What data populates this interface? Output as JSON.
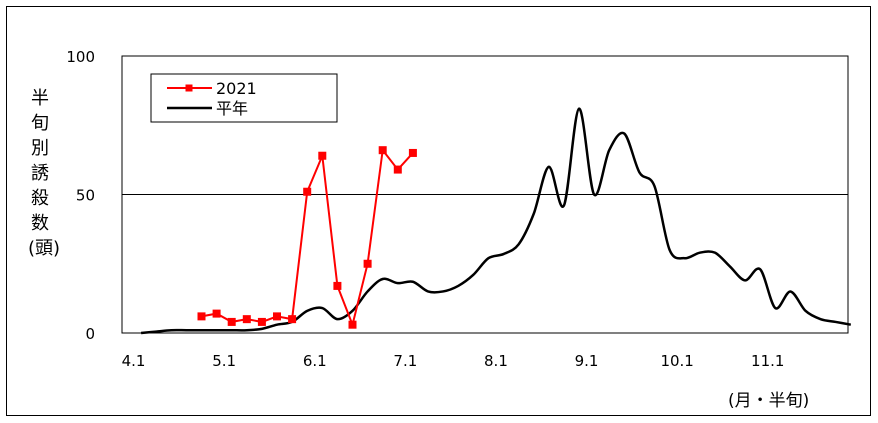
{
  "chart_data": {
    "type": "line",
    "ylabel": "半旬別誘殺数(頭)",
    "xlabel": "(月・半旬)",
    "ylim": [
      0,
      100
    ],
    "yticks": [
      "0",
      "50",
      "100"
    ],
    "xticks": [
      "4.1",
      "5.1",
      "6.1",
      "7.1",
      "8.1",
      "9.1",
      "10.1",
      "11.1"
    ],
    "gridlines_y": [
      50
    ],
    "legend_position": "top-left",
    "series": [
      {
        "name": "2021",
        "color": "#ff0000",
        "marker": "square",
        "points": [
          [
            5,
            6
          ],
          [
            6,
            7
          ],
          [
            7,
            4
          ],
          [
            8,
            5
          ],
          [
            9,
            4
          ],
          [
            10,
            6
          ],
          [
            11,
            5
          ],
          [
            12,
            51
          ],
          [
            13,
            64
          ],
          [
            14,
            17
          ],
          [
            15,
            3
          ],
          [
            16,
            25
          ],
          [
            17,
            66
          ],
          [
            18,
            59
          ],
          [
            19,
            65
          ]
        ]
      },
      {
        "name": "平年",
        "color": "#000000",
        "marker": "none",
        "points": [
          [
            1,
            0
          ],
          [
            2,
            0.5
          ],
          [
            3,
            1
          ],
          [
            4,
            1
          ],
          [
            5,
            1
          ],
          [
            6,
            1
          ],
          [
            7,
            1
          ],
          [
            8,
            1
          ],
          [
            9,
            1.5
          ],
          [
            10,
            3
          ],
          [
            11,
            4
          ],
          [
            12,
            8
          ],
          [
            13,
            9
          ],
          [
            14,
            5
          ],
          [
            15,
            8
          ],
          [
            16,
            15
          ],
          [
            17,
            19.5
          ],
          [
            18,
            18
          ],
          [
            19,
            18.5
          ],
          [
            20,
            15
          ],
          [
            21,
            15
          ],
          [
            22,
            17
          ],
          [
            23,
            21
          ],
          [
            24,
            27
          ],
          [
            25,
            28.5
          ],
          [
            26,
            32
          ],
          [
            27,
            43
          ],
          [
            28,
            60
          ],
          [
            29,
            46
          ],
          [
            30,
            81
          ],
          [
            31,
            50
          ],
          [
            32,
            66
          ],
          [
            33,
            72
          ],
          [
            34,
            58
          ],
          [
            35,
            53
          ],
          [
            36,
            30
          ],
          [
            37,
            27
          ],
          [
            38,
            29
          ],
          [
            39,
            29
          ],
          [
            40,
            24
          ],
          [
            41,
            19
          ],
          [
            42,
            23
          ],
          [
            43,
            9
          ],
          [
            44,
            15
          ],
          [
            45,
            8
          ],
          [
            46,
            5
          ],
          [
            47,
            4
          ],
          [
            48,
            3
          ]
        ]
      }
    ]
  }
}
